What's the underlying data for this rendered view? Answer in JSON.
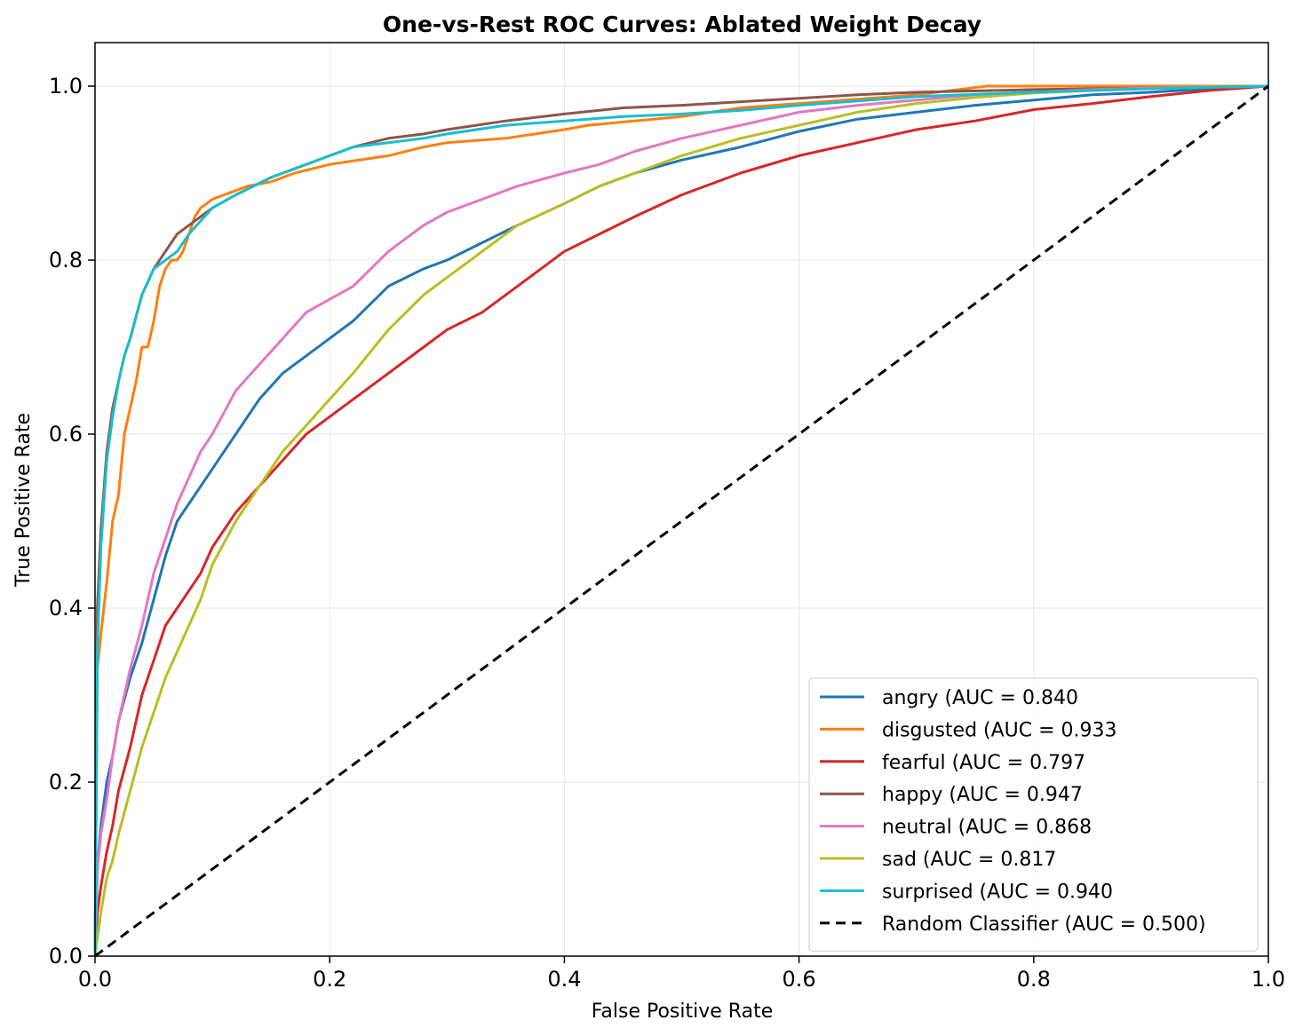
{
  "chart_data": {
    "type": "line",
    "title": "One-vs-Rest ROC Curves: Ablated Weight Decay",
    "xlabel": "False Positive Rate",
    "ylabel": "True Positive Rate",
    "xlim": [
      0,
      1
    ],
    "ylim": [
      0,
      1.05
    ],
    "xticks": [
      "0.0",
      "0.2",
      "0.4",
      "0.6",
      "0.8",
      "1.0"
    ],
    "yticks": [
      "0.0",
      "0.2",
      "0.4",
      "0.6",
      "0.8",
      "1.0"
    ],
    "xtick_values": [
      0,
      0.2,
      0.4,
      0.6,
      0.8,
      1.0
    ],
    "ytick_values": [
      0,
      0.2,
      0.4,
      0.6,
      0.8,
      1.0
    ],
    "grid": true,
    "legend_position": "lower-right",
    "series": [
      {
        "name": "angry (AUC = 0.840",
        "color": "#1f77b4",
        "x": [
          0,
          0.002,
          0.005,
          0.01,
          0.015,
          0.02,
          0.03,
          0.04,
          0.05,
          0.06,
          0.07,
          0.08,
          0.09,
          0.1,
          0.12,
          0.14,
          0.16,
          0.18,
          0.2,
          0.22,
          0.25,
          0.28,
          0.3,
          0.33,
          0.36,
          0.4,
          0.43,
          0.46,
          0.5,
          0.55,
          0.6,
          0.65,
          0.7,
          0.75,
          0.8,
          0.85,
          0.9,
          0.95,
          1.0
        ],
        "y": [
          0,
          0.1,
          0.15,
          0.2,
          0.23,
          0.27,
          0.32,
          0.36,
          0.41,
          0.46,
          0.5,
          0.52,
          0.54,
          0.56,
          0.6,
          0.64,
          0.67,
          0.69,
          0.71,
          0.73,
          0.77,
          0.79,
          0.8,
          0.82,
          0.84,
          0.865,
          0.885,
          0.9,
          0.915,
          0.93,
          0.948,
          0.962,
          0.97,
          0.978,
          0.984,
          0.99,
          0.993,
          0.997,
          1.0
        ]
      },
      {
        "name": "disgusted (AUC = 0.933",
        "color": "#ff7f0e",
        "x": [
          0,
          0.002,
          0.005,
          0.01,
          0.015,
          0.02,
          0.025,
          0.03,
          0.035,
          0.04,
          0.045,
          0.05,
          0.055,
          0.06,
          0.065,
          0.07,
          0.075,
          0.08,
          0.085,
          0.09,
          0.1,
          0.11,
          0.12,
          0.13,
          0.15,
          0.17,
          0.2,
          0.25,
          0.28,
          0.3,
          0.35,
          0.4,
          0.42,
          0.5,
          0.55,
          0.6,
          0.65,
          0.7,
          0.76,
          0.8,
          0.9,
          1.0
        ],
        "y": [
          0,
          0.33,
          0.37,
          0.43,
          0.5,
          0.53,
          0.6,
          0.63,
          0.66,
          0.7,
          0.7,
          0.73,
          0.77,
          0.79,
          0.8,
          0.8,
          0.81,
          0.83,
          0.85,
          0.86,
          0.87,
          0.875,
          0.88,
          0.885,
          0.89,
          0.9,
          0.91,
          0.92,
          0.93,
          0.935,
          0.94,
          0.95,
          0.955,
          0.965,
          0.975,
          0.98,
          0.985,
          0.99,
          1.0,
          1.0,
          1.0,
          1.0
        ]
      },
      {
        "name": "fearful (AUC = 0.797",
        "color": "#d62728",
        "x": [
          0,
          0.002,
          0.005,
          0.01,
          0.015,
          0.02,
          0.03,
          0.04,
          0.05,
          0.06,
          0.07,
          0.08,
          0.09,
          0.1,
          0.12,
          0.14,
          0.16,
          0.18,
          0.2,
          0.22,
          0.25,
          0.28,
          0.3,
          0.33,
          0.36,
          0.4,
          0.43,
          0.46,
          0.5,
          0.55,
          0.6,
          0.65,
          0.7,
          0.75,
          0.8,
          0.85,
          0.9,
          0.95,
          1.0
        ],
        "y": [
          0,
          0.05,
          0.08,
          0.12,
          0.15,
          0.19,
          0.24,
          0.3,
          0.34,
          0.38,
          0.4,
          0.42,
          0.44,
          0.47,
          0.51,
          0.54,
          0.57,
          0.6,
          0.62,
          0.64,
          0.67,
          0.7,
          0.72,
          0.74,
          0.77,
          0.81,
          0.83,
          0.85,
          0.875,
          0.9,
          0.92,
          0.935,
          0.95,
          0.96,
          0.973,
          0.98,
          0.988,
          0.995,
          1.0
        ]
      },
      {
        "name": "happy (AUC = 0.947",
        "color": "#8c564b",
        "x": [
          0,
          0.002,
          0.005,
          0.01,
          0.015,
          0.02,
          0.025,
          0.03,
          0.04,
          0.05,
          0.06,
          0.07,
          0.08,
          0.1,
          0.12,
          0.15,
          0.18,
          0.2,
          0.22,
          0.25,
          0.28,
          0.3,
          0.35,
          0.4,
          0.45,
          0.5,
          0.55,
          0.6,
          0.65,
          0.7,
          0.8,
          0.9,
          1.0
        ],
        "y": [
          0,
          0.4,
          0.49,
          0.58,
          0.63,
          0.66,
          0.69,
          0.71,
          0.76,
          0.79,
          0.81,
          0.83,
          0.84,
          0.86,
          0.875,
          0.895,
          0.91,
          0.92,
          0.93,
          0.94,
          0.945,
          0.95,
          0.96,
          0.968,
          0.975,
          0.978,
          0.982,
          0.986,
          0.99,
          0.993,
          0.996,
          0.998,
          1.0
        ]
      },
      {
        "name": "neutral (AUC = 0.868",
        "color": "#e377c2",
        "x": [
          0,
          0.002,
          0.005,
          0.01,
          0.015,
          0.02,
          0.03,
          0.04,
          0.05,
          0.06,
          0.07,
          0.08,
          0.09,
          0.1,
          0.12,
          0.14,
          0.16,
          0.18,
          0.2,
          0.22,
          0.25,
          0.28,
          0.3,
          0.33,
          0.36,
          0.4,
          0.43,
          0.46,
          0.5,
          0.55,
          0.6,
          0.65,
          0.7,
          0.75,
          0.8,
          0.85,
          0.9,
          0.95,
          1.0
        ],
        "y": [
          0,
          0.1,
          0.14,
          0.18,
          0.23,
          0.27,
          0.33,
          0.38,
          0.44,
          0.48,
          0.52,
          0.55,
          0.58,
          0.6,
          0.65,
          0.68,
          0.71,
          0.74,
          0.755,
          0.77,
          0.81,
          0.84,
          0.855,
          0.87,
          0.885,
          0.9,
          0.91,
          0.925,
          0.94,
          0.955,
          0.97,
          0.978,
          0.984,
          0.99,
          0.993,
          0.996,
          0.998,
          0.999,
          1.0
        ]
      },
      {
        "name": "sad (AUC = 0.817",
        "color": "#bcbd22",
        "x": [
          0,
          0.002,
          0.005,
          0.01,
          0.015,
          0.02,
          0.03,
          0.04,
          0.05,
          0.06,
          0.07,
          0.08,
          0.09,
          0.1,
          0.12,
          0.14,
          0.16,
          0.18,
          0.2,
          0.22,
          0.25,
          0.28,
          0.3,
          0.33,
          0.36,
          0.4,
          0.43,
          0.46,
          0.5,
          0.55,
          0.6,
          0.65,
          0.7,
          0.75,
          0.8,
          0.85,
          0.9,
          0.95,
          1.0
        ],
        "y": [
          0,
          0.02,
          0.05,
          0.09,
          0.11,
          0.14,
          0.19,
          0.24,
          0.28,
          0.32,
          0.35,
          0.38,
          0.41,
          0.45,
          0.5,
          0.54,
          0.58,
          0.61,
          0.64,
          0.67,
          0.72,
          0.76,
          0.78,
          0.81,
          0.84,
          0.865,
          0.885,
          0.9,
          0.92,
          0.94,
          0.955,
          0.97,
          0.98,
          0.987,
          0.992,
          0.995,
          0.997,
          0.999,
          1.0
        ]
      },
      {
        "name": "surprised (AUC = 0.940",
        "color": "#17becf",
        "x": [
          0,
          0.002,
          0.005,
          0.01,
          0.015,
          0.02,
          0.025,
          0.03,
          0.04,
          0.05,
          0.06,
          0.07,
          0.08,
          0.1,
          0.12,
          0.15,
          0.18,
          0.2,
          0.22,
          0.25,
          0.28,
          0.3,
          0.35,
          0.4,
          0.45,
          0.5,
          0.55,
          0.6,
          0.65,
          0.7,
          0.8,
          0.9,
          1.0
        ],
        "y": [
          0,
          0.35,
          0.47,
          0.57,
          0.62,
          0.66,
          0.69,
          0.71,
          0.76,
          0.79,
          0.8,
          0.81,
          0.83,
          0.86,
          0.875,
          0.895,
          0.91,
          0.92,
          0.93,
          0.935,
          0.94,
          0.945,
          0.955,
          0.96,
          0.965,
          0.968,
          0.972,
          0.978,
          0.983,
          0.988,
          0.993,
          0.997,
          1.0
        ]
      },
      {
        "name": "Random Classifier (AUC = 0.500)",
        "color": "#000000",
        "dashed": true,
        "x": [
          0,
          1
        ],
        "y": [
          0,
          1
        ]
      }
    ]
  }
}
